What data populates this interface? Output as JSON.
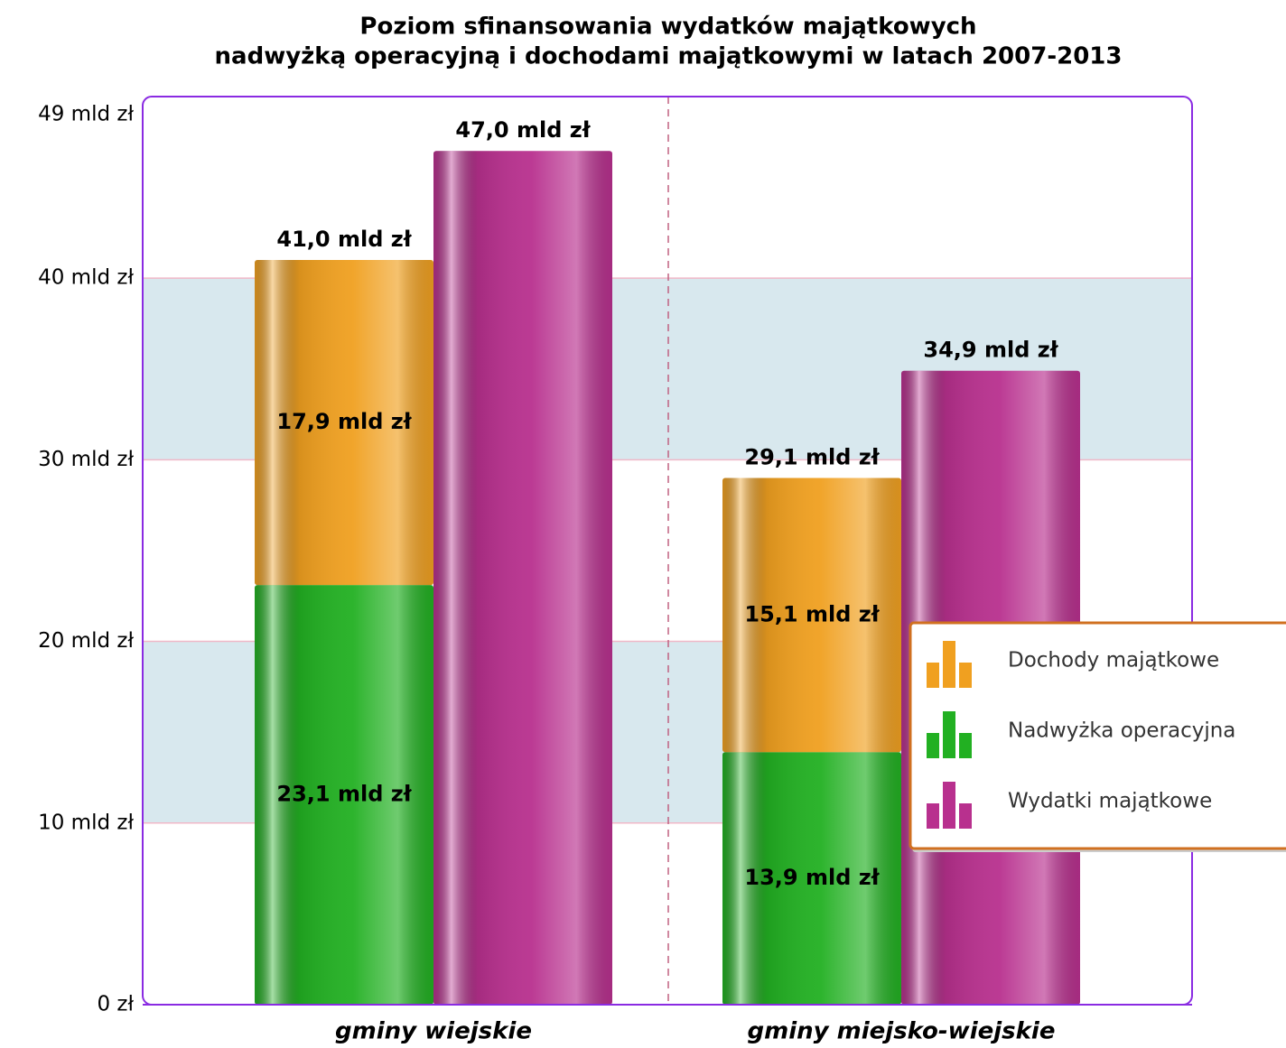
{
  "chart_data": {
    "type": "bar",
    "title": [
      "Poziom sfinansowania wydatków majątkowych",
      "nadwyżką operacyjną i dochodami majątkowymi w latach 2007-2013"
    ],
    "categories": [
      "gminy wiejskie",
      "gminy miejsko-wiejskie"
    ],
    "series": [
      {
        "name": "Dochody majątkowe",
        "color": "#f0a020",
        "stack": "a",
        "values": [
          17.9,
          15.1
        ],
        "value_labels": [
          "17,9 mld zł",
          "15,1 mld zł"
        ]
      },
      {
        "name": "Nadwyżka operacyjna",
        "color": "#22b022",
        "stack": "a",
        "values": [
          23.1,
          13.9
        ],
        "value_labels": [
          "23,1 mld zł",
          "13,9 mld zł"
        ]
      },
      {
        "name": "Wydatki majątkowe",
        "color": "#b8308e",
        "values": [
          47.0,
          34.9
        ],
        "value_labels": [
          "47,0 mld zł",
          "34,9 mld zł"
        ]
      }
    ],
    "totals": [
      41.0,
      29.1
    ],
    "total_labels": [
      "41,0 mld zł",
      "29,1 mld zł"
    ],
    "ylim": [
      0,
      49
    ],
    "yticks": [
      {
        "value": 0,
        "label": "0 zł"
      },
      {
        "value": 10,
        "label": "10 mld zł"
      },
      {
        "value": 20,
        "label": "20 mld zł"
      },
      {
        "value": 30,
        "label": "30 mld zł"
      },
      {
        "value": 40,
        "label": "40 mld zł"
      },
      {
        "value": 49,
        "label": "49 mld zł"
      }
    ],
    "grid": true,
    "legend": "right"
  }
}
